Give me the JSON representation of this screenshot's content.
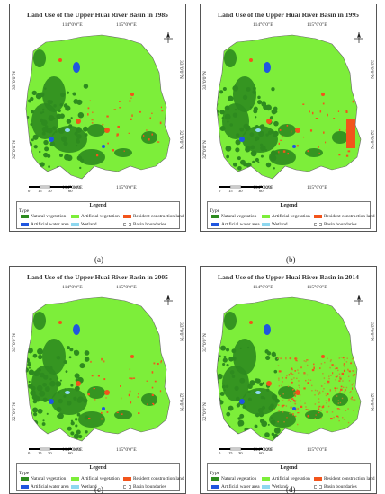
{
  "panels": [
    {
      "title": "Land Use of the Upper Huai River Basin in 1985",
      "caption": "(a)",
      "year": "1985"
    },
    {
      "title": "Land Use of the Upper Huai River Basin in 1995",
      "caption": "(b)",
      "year": "1995"
    },
    {
      "title": "Land Use of the Upper Huai River Basin in 2005",
      "caption": "(c)",
      "year": "2005"
    },
    {
      "title": "Land Use of the Upper Huai River Basin in 2014",
      "caption": "(d)",
      "year": "2014"
    }
  ],
  "graticule": {
    "lon_1": "114°0'0\"E",
    "lon_2": "115°0'0\"E",
    "lat_33": "33°0'0\"N",
    "lat_32": "32°0'0\"N"
  },
  "scale_bar": {
    "ticks": [
      "0",
      "15",
      "30",
      "60"
    ],
    "unit": "KM"
  },
  "legend": {
    "title": "Legend",
    "type_label": "Type",
    "items": [
      {
        "label": "Natural vegetation",
        "color": "#2e8b1f"
      },
      {
        "label": "Artificial vegetation",
        "color": "#7dee3a"
      },
      {
        "label": "Resident construction land",
        "color": "#f2541b"
      },
      {
        "label": "Artificial water area",
        "color": "#1f56e0"
      },
      {
        "label": "Wetland",
        "color": "#8ed8f0"
      },
      {
        "label": "Basin boundaries",
        "color": "#ffffff"
      }
    ]
  },
  "colors": {
    "natural_vegetation": "#2e8b1f",
    "artificial_vegetation": "#7dee3a",
    "resident_land": "#f2541b",
    "water": "#1f56e0",
    "wetland": "#8ed8f0"
  },
  "north_arrow_icon": "north-arrow-icon"
}
